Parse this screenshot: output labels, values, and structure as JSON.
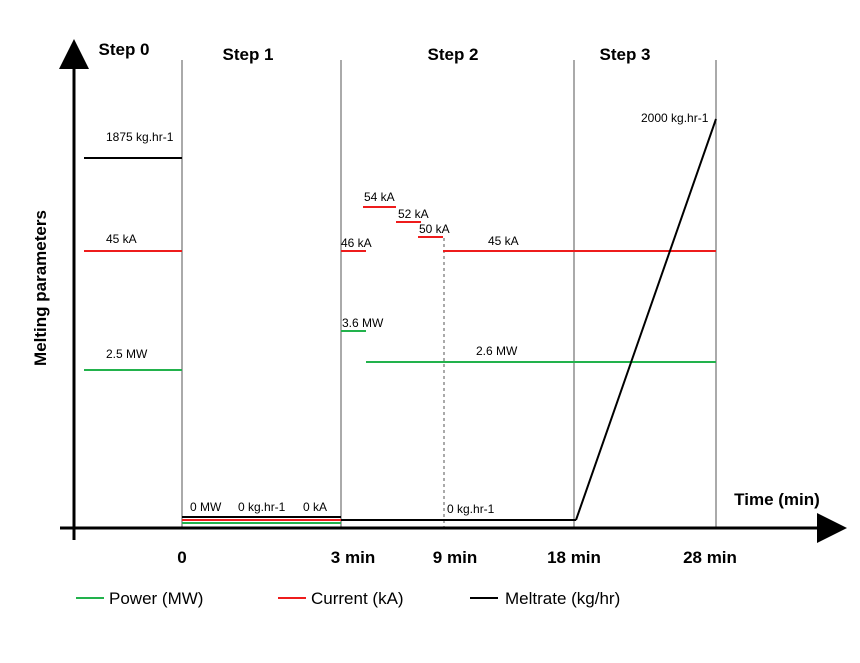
{
  "steps": [
    "Step 0",
    "Step 1",
    "Step 2",
    "Step 3"
  ],
  "axes": {
    "y_label": "Melting parameters",
    "x_label": "Time (min)",
    "x_ticks": [
      "0",
      "3 min",
      "9 min",
      "18 min",
      "28 min"
    ]
  },
  "annotations": {
    "meltrate_step0": "1875 kg.hr-1",
    "current_step0": "45 kA",
    "power_step0": "2.5 MW",
    "power_step1": "0 MW",
    "meltrate_step1": "0 kg.hr-1",
    "current_step1": "0 kA",
    "current_46": "46 kA",
    "current_54": "54 kA",
    "current_52": "52 kA",
    "current_50": "50 kA",
    "current_45b": "45 kA",
    "power_36": "3.6 MW",
    "power_26": "2.6 MW",
    "meltrate_step2": "0 kg.hr-1",
    "meltrate_step3": "2000 kg.hr-1"
  },
  "legend": [
    {
      "label": "Power (MW)",
      "color": "#22b24c"
    },
    {
      "label": "Current (kA)",
      "color": "#ee1c1c"
    },
    {
      "label": "Meltrate (kg/hr)",
      "color": "#000000"
    }
  ],
  "colors": {
    "power": "#22b24c",
    "current": "#ee1c1c",
    "meltrate": "#000000"
  }
}
